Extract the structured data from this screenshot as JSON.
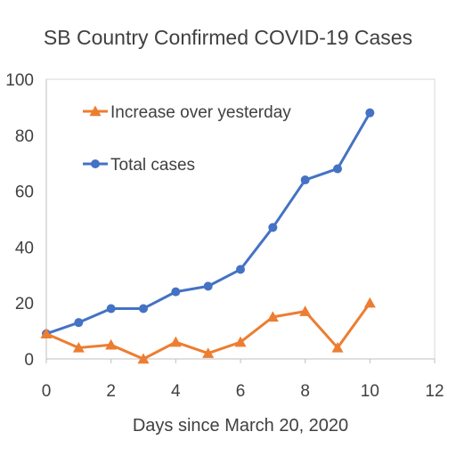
{
  "chart_data": {
    "type": "scatter",
    "title": "SB Country Confirmed COVID-19 Cases",
    "xlabel": "Days since March 20, 2020",
    "ylabel": "",
    "xlim": [
      0,
      12
    ],
    "ylim": [
      0,
      100
    ],
    "x_ticks": [
      "0",
      "2",
      "4",
      "6",
      "8",
      "10",
      "12"
    ],
    "y_ticks": [
      "0",
      "20",
      "40",
      "60",
      "80",
      "100"
    ],
    "grid": false,
    "legend_position": "top-left (inside plot)",
    "series": [
      {
        "name": "Increase over yesterday",
        "color": "#ED7D31",
        "marker": "triangle",
        "x": [
          0,
          1,
          2,
          3,
          4,
          5,
          6,
          7,
          8,
          9,
          10
        ],
        "y": [
          9,
          4,
          5,
          0,
          6,
          2,
          6,
          15,
          17,
          4,
          20
        ]
      },
      {
        "name": "Total cases",
        "color": "#4472C4",
        "marker": "circle",
        "x": [
          0,
          1,
          2,
          3,
          4,
          5,
          6,
          7,
          8,
          9,
          10
        ],
        "y": [
          9,
          13,
          18,
          18,
          24,
          26,
          32,
          47,
          64,
          68,
          88
        ]
      }
    ]
  }
}
